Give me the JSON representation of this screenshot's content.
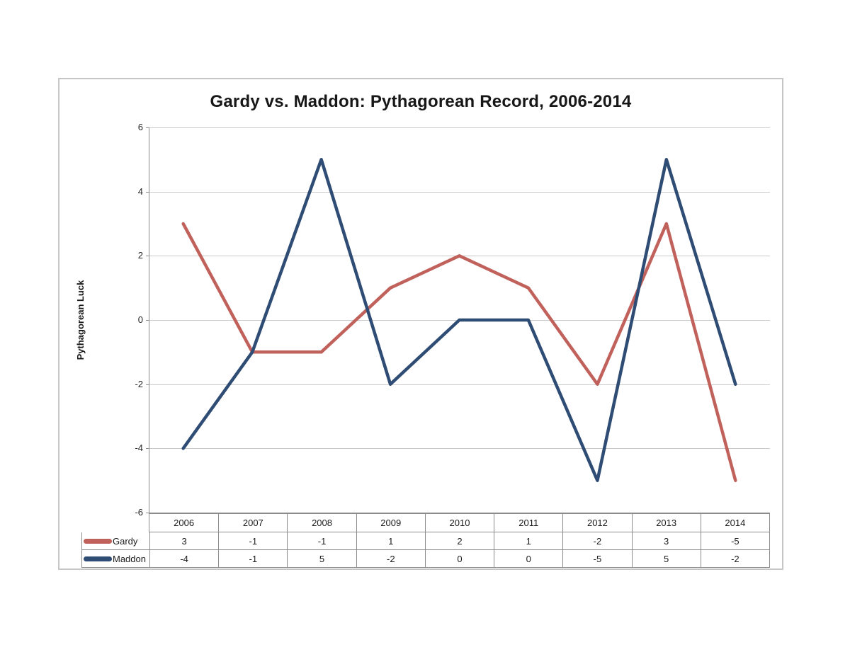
{
  "chart_data": {
    "type": "line",
    "title": "Gardy vs. Maddon: Pythagorean Record, 2006-2014",
    "ylabel": "Pythagorean Luck",
    "xlabel": "",
    "categories": [
      "2006",
      "2007",
      "2008",
      "2009",
      "2010",
      "2011",
      "2012",
      "2013",
      "2014"
    ],
    "series": [
      {
        "name": "Gardy",
        "color": "#c0625b",
        "values": [
          3,
          -1,
          -1,
          1,
          2,
          1,
          -2,
          3,
          -5
        ]
      },
      {
        "name": "Maddon",
        "color": "#2e4c74",
        "values": [
          -4,
          -1,
          5,
          -2,
          0,
          0,
          -5,
          5,
          -2
        ]
      }
    ],
    "ylim": [
      -6,
      6
    ],
    "ytick_step": 2,
    "ytick_labels": [
      "6",
      "4",
      "2",
      "0",
      "-2",
      "-4",
      "-6"
    ],
    "grid": "horizontal-major",
    "legend_position": "data-table-left",
    "colors": {
      "gridline": "#c9c9c9",
      "axis": "#8c8c8c",
      "table_border": "#8c8c8c",
      "chart_border": "#c6c6c6",
      "text": "#1a1a1a"
    }
  }
}
